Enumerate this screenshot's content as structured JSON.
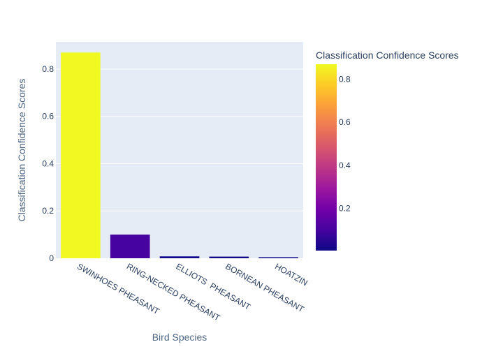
{
  "chart_data": {
    "type": "bar",
    "title": "",
    "xlabel": "Bird Species",
    "ylabel": "Classification Confidence Scores",
    "categories": [
      "SWINHOES PHEASANT",
      "RING-NECKED PHEASANT",
      "ELLIOTS  PHEASANT",
      "BORNEAN PHEASANT",
      "HOATZIN"
    ],
    "values": [
      0.87,
      0.1,
      0.008,
      0.007,
      0.004
    ],
    "ylim": [
      0,
      0.915
    ],
    "yticks": [
      "0",
      "0.2",
      "0.4",
      "0.6",
      "0.8"
    ],
    "grid": true,
    "colorbar": {
      "title": "Classification Confidence Scores",
      "range": [
        0.004,
        0.87
      ],
      "ticks": [
        "0.2",
        "0.4",
        "0.6",
        "0.8"
      ],
      "colorscale": [
        "#0d0887",
        "#46039f",
        "#7201a8",
        "#9c179e",
        "#bd3786",
        "#d8576b",
        "#ed7953",
        "#fb9f3a",
        "#fdca26",
        "#f0f921"
      ]
    },
    "colors": {
      "plot_bg": "#e5ecf6",
      "grid": "#ffffff"
    }
  }
}
